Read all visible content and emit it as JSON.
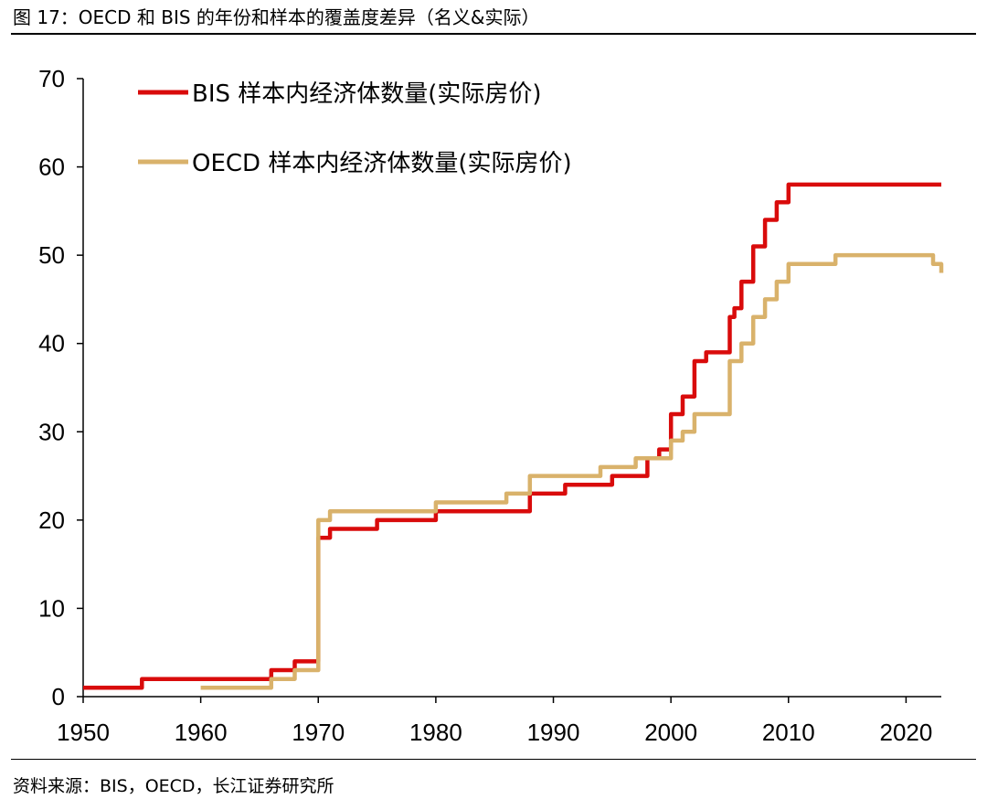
{
  "title": "图 17：OECD 和 BIS 的年份和样本的覆盖度差异（名义&实际）",
  "source": "资料来源：BIS，OECD，长江证券研究所",
  "chart_data": {
    "type": "line",
    "title": "",
    "xlabel": "",
    "ylabel": "",
    "xlim": [
      1950,
      2023
    ],
    "ylim": [
      0,
      70
    ],
    "x_ticks": [
      "1950",
      "1960",
      "1970",
      "1980",
      "1990",
      "2000",
      "2010",
      "2020"
    ],
    "y_ticks": [
      "0",
      "10",
      "20",
      "30",
      "40",
      "50",
      "60",
      "70"
    ],
    "grid": false,
    "legend_position": "top-left",
    "step": true,
    "series": [
      {
        "name": "BIS 样本内经济体数量(实际房价)",
        "color": "#d90b0b",
        "points": [
          [
            1950,
            1
          ],
          [
            1955,
            2
          ],
          [
            1966,
            3
          ],
          [
            1968,
            4
          ],
          [
            1970,
            18
          ],
          [
            1971,
            19
          ],
          [
            1975,
            20
          ],
          [
            1980,
            21
          ],
          [
            1988,
            23
          ],
          [
            1991,
            24
          ],
          [
            1995,
            25
          ],
          [
            1998,
            27
          ],
          [
            1999,
            28
          ],
          [
            2000,
            32
          ],
          [
            2001,
            34
          ],
          [
            2002,
            38
          ],
          [
            2003,
            39
          ],
          [
            2005,
            43
          ],
          [
            2005.4,
            44
          ],
          [
            2006,
            47
          ],
          [
            2007,
            51
          ],
          [
            2008,
            54
          ],
          [
            2009,
            56
          ],
          [
            2010,
            58
          ],
          [
            2023,
            58
          ]
        ]
      },
      {
        "name": "OECD 样本内经济体数量(实际房价)",
        "color": "#d9b26b",
        "points": [
          [
            1960,
            1
          ],
          [
            1966,
            2
          ],
          [
            1968,
            3
          ],
          [
            1970,
            20
          ],
          [
            1971,
            21
          ],
          [
            1980,
            22
          ],
          [
            1986,
            23
          ],
          [
            1988,
            25
          ],
          [
            1994,
            26
          ],
          [
            1997,
            27
          ],
          [
            2000,
            29
          ],
          [
            2001,
            30
          ],
          [
            2002,
            32
          ],
          [
            2005,
            38
          ],
          [
            2006,
            40
          ],
          [
            2007,
            43
          ],
          [
            2008,
            45
          ],
          [
            2009,
            47
          ],
          [
            2010,
            49
          ],
          [
            2014,
            50
          ],
          [
            2022,
            50
          ],
          [
            2022.3,
            49
          ],
          [
            2023,
            48
          ]
        ]
      }
    ]
  }
}
